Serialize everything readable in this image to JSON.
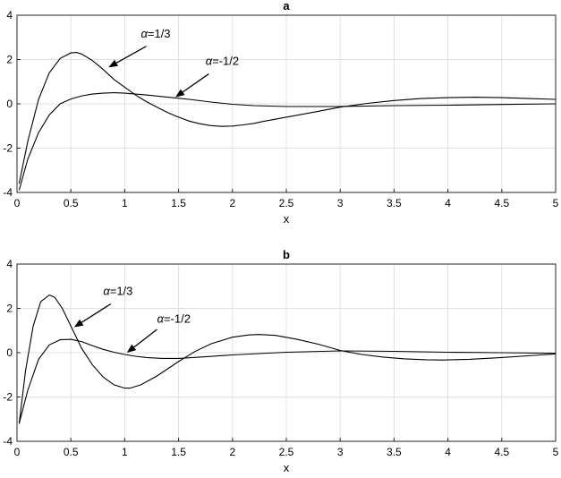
{
  "chart_data": [
    {
      "type": "line",
      "title": "a",
      "xlabel": "x",
      "ylabel": "",
      "xlim": [
        0,
        5
      ],
      "ylim": [
        -4,
        4
      ],
      "xticks": [
        0,
        0.5,
        1,
        1.5,
        2,
        2.5,
        3,
        3.5,
        4,
        4.5,
        5
      ],
      "xtick_labels": [
        "0",
        "0.5",
        "1",
        "1.5",
        "2",
        "2.5",
        "3",
        "3.5",
        "4",
        "4.5",
        "5"
      ],
      "yticks": [
        -4,
        -2,
        0,
        2,
        4
      ],
      "ytick_labels": [
        "-4",
        "-2",
        "0",
        "2",
        "4"
      ],
      "grid": true,
      "series": [
        {
          "x": [
            0.02,
            0.1,
            0.2,
            0.3,
            0.4,
            0.5,
            0.55,
            0.6,
            0.7,
            0.8,
            0.9,
            1.0,
            1.1,
            1.2,
            1.3,
            1.4,
            1.5,
            1.6,
            1.7,
            1.8,
            1.9,
            2.0,
            2.1,
            2.2,
            2.3,
            2.5,
            2.75,
            3.0,
            3.25,
            3.5,
            3.75,
            4.0,
            4.25,
            4.5,
            4.75,
            5.0
          ],
          "y": [
            -3.6,
            -1.7,
            0.2,
            1.4,
            2.05,
            2.3,
            2.32,
            2.25,
            1.95,
            1.55,
            1.1,
            0.75,
            0.4,
            0.1,
            -0.15,
            -0.4,
            -0.6,
            -0.78,
            -0.9,
            -0.98,
            -1.02,
            -1.0,
            -0.95,
            -0.88,
            -0.78,
            -0.6,
            -0.38,
            -0.15,
            0.02,
            0.15,
            0.24,
            0.28,
            0.3,
            0.28,
            0.24,
            0.2
          ]
        },
        {
          "x": [
            0.02,
            0.1,
            0.2,
            0.3,
            0.4,
            0.5,
            0.6,
            0.7,
            0.8,
            0.9,
            1.0,
            1.2,
            1.4,
            1.6,
            1.8,
            2.0,
            2.2,
            2.5,
            3.0,
            3.5,
            4.0,
            4.5,
            5.0
          ],
          "y": [
            -3.9,
            -2.5,
            -1.3,
            -0.5,
            0.0,
            0.22,
            0.36,
            0.44,
            0.48,
            0.5,
            0.48,
            0.4,
            0.3,
            0.2,
            0.08,
            -0.02,
            -0.08,
            -0.12,
            -0.12,
            -0.08,
            -0.06,
            -0.03,
            0.0
          ]
        }
      ],
      "annotations": [
        {
          "greek": "α",
          "text": "=1/3",
          "label_x": 1.15,
          "label_y": 3.0,
          "arrow_from": [
            1.2,
            2.6
          ],
          "arrow_to": [
            0.85,
            1.65
          ]
        },
        {
          "greek": "α",
          "text": "=-1/2",
          "label_x": 1.75,
          "label_y": 1.75,
          "arrow_from": [
            1.78,
            1.35
          ],
          "arrow_to": [
            1.47,
            0.3
          ]
        }
      ]
    },
    {
      "type": "line",
      "title": "b",
      "xlabel": "x",
      "ylabel": "",
      "xlim": [
        0,
        5
      ],
      "ylim": [
        -4,
        4
      ],
      "xticks": [
        0,
        0.5,
        1,
        1.5,
        2,
        2.5,
        3,
        3.5,
        4,
        4.5,
        5
      ],
      "xtick_labels": [
        "0",
        "0.5",
        "1",
        "1.5",
        "2",
        "2.5",
        "3",
        "3.5",
        "4",
        "4.5",
        "5"
      ],
      "yticks": [
        -4,
        -2,
        0,
        2,
        4
      ],
      "ytick_labels": [
        "-4",
        "-2",
        "0",
        "2",
        "4"
      ],
      "grid": true,
      "series": [
        {
          "x": [
            0.02,
            0.08,
            0.15,
            0.22,
            0.3,
            0.35,
            0.42,
            0.5,
            0.6,
            0.7,
            0.8,
            0.9,
            1.0,
            1.05,
            1.15,
            1.3,
            1.5,
            1.65,
            1.8,
            2.0,
            2.15,
            2.25,
            2.4,
            2.6,
            2.8,
            3.0,
            3.2,
            3.4,
            3.6,
            3.8,
            3.95,
            4.2,
            4.5,
            4.8,
            5.0
          ],
          "y": [
            -3.2,
            -0.8,
            1.2,
            2.3,
            2.6,
            2.5,
            2.0,
            1.2,
            0.2,
            -0.55,
            -1.1,
            -1.45,
            -1.6,
            -1.6,
            -1.45,
            -1.05,
            -0.4,
            0.05,
            0.4,
            0.7,
            0.8,
            0.82,
            0.78,
            0.6,
            0.38,
            0.1,
            -0.08,
            -0.2,
            -0.28,
            -0.32,
            -0.33,
            -0.3,
            -0.22,
            -0.12,
            -0.06
          ]
        },
        {
          "x": [
            0.02,
            0.1,
            0.2,
            0.3,
            0.4,
            0.5,
            0.6,
            0.7,
            0.8,
            0.9,
            1.0,
            1.1,
            1.2,
            1.35,
            1.5,
            1.7,
            2.0,
            2.5,
            3.0,
            3.5,
            4.0,
            4.5,
            5.0
          ],
          "y": [
            -3.2,
            -1.7,
            -0.3,
            0.35,
            0.58,
            0.6,
            0.5,
            0.32,
            0.15,
            0.02,
            -0.08,
            -0.16,
            -0.22,
            -0.26,
            -0.26,
            -0.2,
            -0.1,
            0.02,
            0.08,
            0.06,
            0.02,
            0.0,
            -0.03
          ]
        }
      ],
      "annotations": [
        {
          "greek": "α",
          "text": "=1/3",
          "label_x": 0.8,
          "label_y": 2.6,
          "arrow_from": [
            0.87,
            2.2
          ],
          "arrow_to": [
            0.53,
            1.15
          ]
        },
        {
          "greek": "α",
          "text": "=-1/2",
          "label_x": 1.3,
          "label_y": 1.35,
          "arrow_from": [
            1.3,
            1.05
          ],
          "arrow_to": [
            1.02,
            0.0
          ]
        }
      ]
    }
  ]
}
